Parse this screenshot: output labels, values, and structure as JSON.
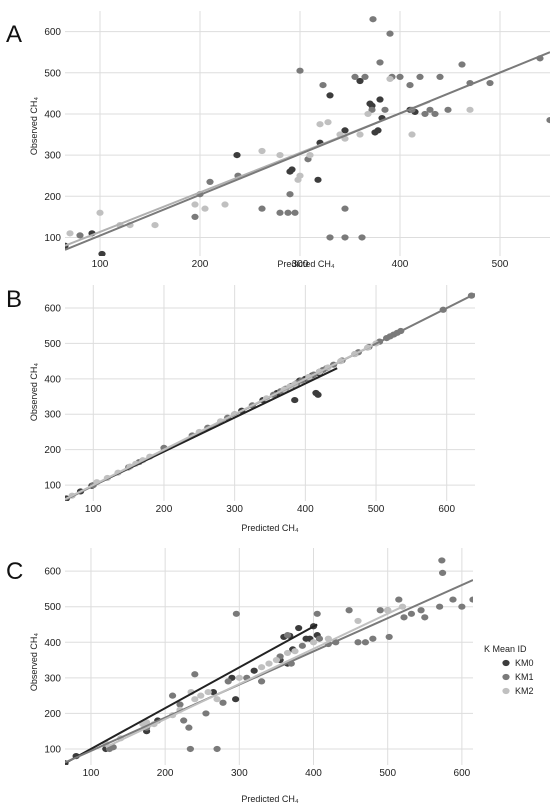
{
  "legend": {
    "title": "K Mean ID",
    "entries": [
      {
        "name": "KM0",
        "color": "#3c3c3c"
      },
      {
        "name": "KM1",
        "color": "#7a7a7a"
      },
      {
        "name": "KM2",
        "color": "#c0c0c0"
      }
    ],
    "placement": "right of panel C"
  },
  "chart_data": [
    {
      "panel": "A",
      "type": "scatter",
      "xlabel": "Predicted CH₄",
      "ylabel": "Observed CH₄",
      "xlim": [
        65,
        550
      ],
      "ylim": [
        55,
        650
      ],
      "xticks": [
        100,
        200,
        300,
        400,
        500
      ],
      "yticks": [
        100,
        200,
        300,
        400,
        500,
        600
      ],
      "grid": true,
      "series": [
        {
          "name": "KM0",
          "color": "#3c3c3c",
          "points": [
            [
              65,
              80
            ],
            [
              92,
              110
            ],
            [
              102,
              60
            ],
            [
              237,
              300
            ],
            [
              290,
              260
            ],
            [
              292,
              265
            ],
            [
              318,
              240
            ],
            [
              320,
              330
            ],
            [
              330,
              445
            ],
            [
              345,
              360
            ],
            [
              360,
              480
            ],
            [
              370,
              425
            ],
            [
              372,
              420
            ],
            [
              375,
              355
            ],
            [
              378,
              360
            ],
            [
              380,
              435
            ],
            [
              382,
              390
            ],
            [
              410,
              410
            ],
            [
              415,
              405
            ]
          ]
        },
        {
          "name": "KM1",
          "color": "#7a7a7a",
          "points": [
            [
              80,
              105
            ],
            [
              195,
              150
            ],
            [
              200,
              205
            ],
            [
              210,
              235
            ],
            [
              238,
              250
            ],
            [
              262,
              170
            ],
            [
              280,
              160
            ],
            [
              288,
              160
            ],
            [
              290,
              205
            ],
            [
              295,
              160
            ],
            [
              300,
              505
            ],
            [
              308,
              290
            ],
            [
              323,
              470
            ],
            [
              330,
              100
            ],
            [
              345,
              100
            ],
            [
              345,
              170
            ],
            [
              355,
              490
            ],
            [
              362,
              100
            ],
            [
              365,
              490
            ],
            [
              372,
              410
            ],
            [
              373,
              630
            ],
            [
              380,
              525
            ],
            [
              385,
              410
            ],
            [
              390,
              595
            ],
            [
              392,
              490
            ],
            [
              400,
              490
            ],
            [
              410,
              470
            ],
            [
              412,
              410
            ],
            [
              420,
              490
            ],
            [
              425,
              400
            ],
            [
              430,
              410
            ],
            [
              435,
              400
            ],
            [
              440,
              490
            ],
            [
              448,
              410
            ],
            [
              462,
              520
            ],
            [
              470,
              475
            ],
            [
              490,
              475
            ],
            [
              540,
              535
            ],
            [
              550,
              385
            ]
          ]
        },
        {
          "name": "KM2",
          "color": "#c0c0c0",
          "points": [
            [
              70,
              110
            ],
            [
              100,
              160
            ],
            [
              120,
              130
            ],
            [
              130,
              130
            ],
            [
              155,
              130
            ],
            [
              195,
              180
            ],
            [
              205,
              170
            ],
            [
              225,
              180
            ],
            [
              262,
              310
            ],
            [
              280,
              300
            ],
            [
              298,
              240
            ],
            [
              300,
              250
            ],
            [
              310,
              300
            ],
            [
              320,
              375
            ],
            [
              328,
              380
            ],
            [
              340,
              350
            ],
            [
              345,
              340
            ],
            [
              360,
              350
            ],
            [
              368,
              400
            ],
            [
              390,
              485
            ],
            [
              412,
              350
            ],
            [
              470,
              410
            ]
          ]
        }
      ],
      "fit_lines": [
        {
          "color": "#b0b0b0",
          "from": [
            65,
            80
          ],
          "to": [
            430,
            430
          ]
        },
        {
          "color": "#7a7a7a",
          "from": [
            65,
            70
          ],
          "to": [
            550,
            550
          ]
        }
      ]
    },
    {
      "panel": "B",
      "type": "scatter",
      "xlabel": "Predicted CH₄",
      "ylabel": "Observed CH₄",
      "xlim": [
        60,
        640
      ],
      "ylim": [
        55,
        665
      ],
      "xticks": [
        100,
        200,
        300,
        400,
        500,
        600
      ],
      "yticks": [
        100,
        200,
        300,
        400,
        500,
        600
      ],
      "grid": true,
      "series": [
        {
          "name": "KM0",
          "color": "#3c3c3c",
          "points": [
            [
              62,
              62
            ],
            [
              82,
              82
            ],
            [
              98,
              98
            ],
            [
              310,
              310
            ],
            [
              340,
              340
            ],
            [
              360,
              360
            ],
            [
              380,
              380
            ],
            [
              385,
              340
            ],
            [
              392,
              395
            ],
            [
              400,
              400
            ],
            [
              405,
              405
            ],
            [
              410,
              410
            ],
            [
              415,
              360
            ],
            [
              418,
              355
            ],
            [
              420,
              415
            ]
          ]
        },
        {
          "name": "KM1",
          "color": "#7a7a7a",
          "points": [
            [
              100,
              100
            ],
            [
              150,
              150
            ],
            [
              165,
              165
            ],
            [
              200,
              205
            ],
            [
              240,
              240
            ],
            [
              262,
              262
            ],
            [
              290,
              290
            ],
            [
              300,
              300
            ],
            [
              325,
              325
            ],
            [
              355,
              355
            ],
            [
              365,
              365
            ],
            [
              372,
              372
            ],
            [
              380,
              378
            ],
            [
              388,
              388
            ],
            [
              395,
              395
            ],
            [
              405,
              400
            ],
            [
              412,
              412
            ],
            [
              420,
              420
            ],
            [
              425,
              425
            ],
            [
              430,
              430
            ],
            [
              440,
              440
            ],
            [
              452,
              452
            ],
            [
              470,
              470
            ],
            [
              475,
              475
            ],
            [
              490,
              490
            ],
            [
              505,
              505
            ],
            [
              515,
              515
            ],
            [
              520,
              520
            ],
            [
              525,
              525
            ],
            [
              530,
              530
            ],
            [
              535,
              535
            ],
            [
              595,
              595
            ],
            [
              635,
              635
            ]
          ]
        },
        {
          "name": "KM2",
          "color": "#c0c0c0",
          "points": [
            [
              70,
              70
            ],
            [
              105,
              108
            ],
            [
              120,
              120
            ],
            [
              135,
              135
            ],
            [
              152,
              152
            ],
            [
              160,
              160
            ],
            [
              170,
              170
            ],
            [
              180,
              180
            ],
            [
              250,
              250
            ],
            [
              280,
              280
            ],
            [
              300,
              300
            ],
            [
              345,
              345
            ],
            [
              370,
              370
            ],
            [
              378,
              378
            ],
            [
              385,
              385
            ],
            [
              405,
              405
            ],
            [
              420,
              420
            ],
            [
              432,
              432
            ],
            [
              450,
              450
            ],
            [
              470,
              470
            ],
            [
              488,
              488
            ],
            [
              500,
              500
            ]
          ]
        }
      ],
      "fit_lines": [
        {
          "color": "#222222",
          "from": [
            60,
            60
          ],
          "to": [
            445,
            430
          ]
        },
        {
          "color": "#7a7a7a",
          "from": [
            60,
            58
          ],
          "to": [
            640,
            640
          ]
        },
        {
          "color": "#c0c0c0",
          "from": [
            60,
            60
          ],
          "to": [
            495,
            495
          ]
        }
      ]
    },
    {
      "panel": "C",
      "type": "scatter",
      "xlabel": "Predicted CH₄",
      "ylabel": "Observed CH₄",
      "xlim": [
        65,
        615
      ],
      "ylim": [
        55,
        665
      ],
      "xticks": [
        100,
        200,
        300,
        400,
        500,
        600
      ],
      "yticks": [
        100,
        200,
        300,
        400,
        500,
        600
      ],
      "grid": true,
      "series": [
        {
          "name": "KM0",
          "color": "#3c3c3c",
          "points": [
            [
              65,
              60
            ],
            [
              80,
              80
            ],
            [
              120,
              100
            ],
            [
              175,
              150
            ],
            [
              190,
              180
            ],
            [
              265,
              260
            ],
            [
              290,
              300
            ],
            [
              295,
              240
            ],
            [
              320,
              320
            ],
            [
              355,
              350
            ],
            [
              360,
              415
            ],
            [
              365,
              340
            ],
            [
              368,
              418
            ],
            [
              372,
              380
            ],
            [
              380,
              440
            ],
            [
              390,
              410
            ],
            [
              395,
              410
            ],
            [
              400,
              445
            ],
            [
              405,
              420
            ]
          ]
        },
        {
          "name": "KM1",
          "color": "#7a7a7a",
          "points": [
            [
              125,
              100
            ],
            [
              130,
              105
            ],
            [
              175,
              160
            ],
            [
              210,
              250
            ],
            [
              220,
              225
            ],
            [
              225,
              180
            ],
            [
              232,
              160
            ],
            [
              234,
              100
            ],
            [
              240,
              310
            ],
            [
              255,
              200
            ],
            [
              270,
              100
            ],
            [
              278,
              230
            ],
            [
              285,
              290
            ],
            [
              296,
              480
            ],
            [
              310,
              300
            ],
            [
              330,
              290
            ],
            [
              355,
              360
            ],
            [
              365,
              420
            ],
            [
              370,
              340
            ],
            [
              385,
              390
            ],
            [
              405,
              480
            ],
            [
              408,
              410
            ],
            [
              420,
              395
            ],
            [
              430,
              400
            ],
            [
              448,
              490
            ],
            [
              460,
              400
            ],
            [
              470,
              400
            ],
            [
              480,
              410
            ],
            [
              490,
              490
            ],
            [
              500,
              490
            ],
            [
              502,
              415
            ],
            [
              515,
              520
            ],
            [
              522,
              470
            ],
            [
              532,
              480
            ],
            [
              545,
              490
            ],
            [
              550,
              470
            ],
            [
              570,
              500
            ],
            [
              573,
              630
            ],
            [
              574,
              595
            ],
            [
              588,
              520
            ],
            [
              600,
              500
            ],
            [
              615,
              520
            ]
          ]
        },
        {
          "name": "KM2",
          "color": "#c0c0c0",
          "points": [
            [
              120,
              115
            ],
            [
              140,
              130
            ],
            [
              170,
              170
            ],
            [
              175,
              175
            ],
            [
              185,
              170
            ],
            [
              210,
              195
            ],
            [
              220,
              210
            ],
            [
              235,
              260
            ],
            [
              240,
              240
            ],
            [
              248,
              250
            ],
            [
              258,
              260
            ],
            [
              270,
              240
            ],
            [
              300,
              300
            ],
            [
              330,
              330
            ],
            [
              340,
              340
            ],
            [
              350,
              350
            ],
            [
              365,
              370
            ],
            [
              375,
              375
            ],
            [
              400,
              400
            ],
            [
              420,
              410
            ],
            [
              460,
              460
            ],
            [
              500,
              490
            ],
            [
              520,
              500
            ]
          ]
        }
      ],
      "fit_lines": [
        {
          "color": "#222222",
          "from": [
            65,
            60
          ],
          "to": [
            405,
            450
          ]
        },
        {
          "color": "#7a7a7a",
          "from": [
            65,
            62
          ],
          "to": [
            615,
            575
          ]
        },
        {
          "color": "#c0c0c0",
          "from": [
            120,
            105
          ],
          "to": [
            520,
            500
          ]
        }
      ]
    }
  ]
}
